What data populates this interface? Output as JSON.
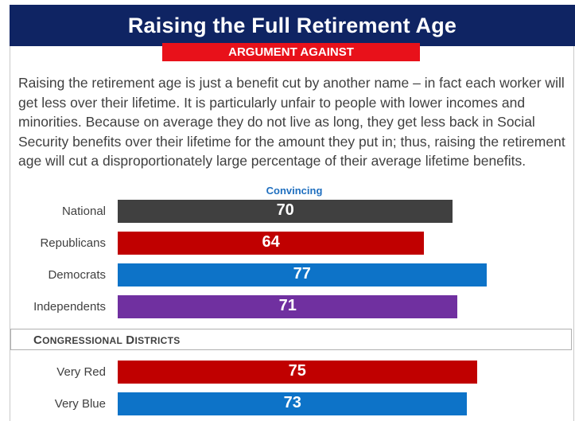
{
  "header": {
    "title": "Raising the Full Retirement Age",
    "banner": "ARGUMENT AGAINST"
  },
  "argument_text": "Raising the retirement age is just a benefit cut by another name – in fact each worker will get less over their lifetime. It is particularly unfair to people with lower incomes and minorities. Because on average they do not live as long, they get less back in Social Security benefits over their lifetime for the amount they put in; thus, raising the retirement age will cut a disproportionately large percentage of their average lifetime benefits.",
  "section_label": "Congressional Districts",
  "colors": {
    "header_bg": "#0f2463",
    "banner_bg": "#e8111a",
    "national": "#404040",
    "republicans": "#c00000",
    "democrats": "#0d73c8",
    "independents": "#7030a0"
  },
  "chart_data": [
    {
      "type": "bar",
      "orientation": "horizontal",
      "title": "Convincing",
      "categories": [
        "National",
        "Republicans",
        "Democrats",
        "Independents"
      ],
      "values": [
        70,
        64,
        77,
        71
      ],
      "colors": [
        "#404040",
        "#c00000",
        "#0d73c8",
        "#7030a0"
      ],
      "xlim": [
        0,
        100
      ]
    },
    {
      "type": "bar",
      "orientation": "horizontal",
      "categories": [
        "Very Red",
        "Very Blue"
      ],
      "values": [
        75,
        73
      ],
      "colors": [
        "#c00000",
        "#0d73c8"
      ],
      "xlim": [
        0,
        100
      ]
    }
  ]
}
